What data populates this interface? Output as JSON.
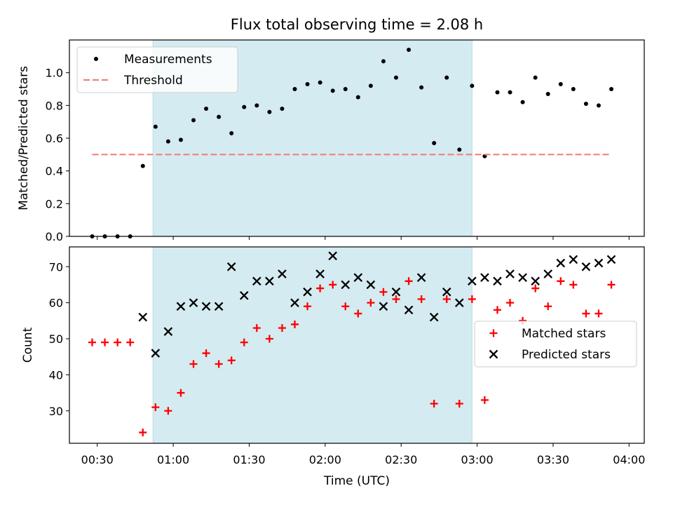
{
  "chart_data": [
    {
      "type": "scatter",
      "title": "Flux total observing time = 2.08 h",
      "xlabel": "",
      "ylabel": "Matched/Predicted stars",
      "xlim": [
        "00:19",
        "04:06"
      ],
      "ylim": [
        0,
        1.2
      ],
      "yticks": [
        0.0,
        0.2,
        0.4,
        0.6,
        0.8,
        1.0
      ],
      "ytick_labels": [
        "0.0",
        "0.2",
        "0.4",
        "0.6",
        "0.8",
        "1.0"
      ],
      "highlight_span": [
        "00:52",
        "02:58"
      ],
      "highlight_color": "#d4ebf1",
      "legend": {
        "placement": "upper left",
        "entries": [
          "Measurements",
          "Threshold"
        ]
      },
      "series": [
        {
          "name": "Measurements",
          "marker": "dot",
          "color": "#000000",
          "points": [
            [
              "00:28",
              0.0
            ],
            [
              "00:33",
              0.0
            ],
            [
              "00:38",
              0.0
            ],
            [
              "00:43",
              0.0
            ],
            [
              "00:48",
              0.43
            ],
            [
              "00:53",
              0.67
            ],
            [
              "00:58",
              0.58
            ],
            [
              "01:03",
              0.59
            ],
            [
              "01:08",
              0.71
            ],
            [
              "01:13",
              0.78
            ],
            [
              "01:18",
              0.73
            ],
            [
              "01:23",
              0.63
            ],
            [
              "01:28",
              0.79
            ],
            [
              "01:33",
              0.8
            ],
            [
              "01:38",
              0.76
            ],
            [
              "01:43",
              0.78
            ],
            [
              "01:48",
              0.9
            ],
            [
              "01:53",
              0.93
            ],
            [
              "01:58",
              0.94
            ],
            [
              "02:03",
              0.89
            ],
            [
              "02:08",
              0.9
            ],
            [
              "02:13",
              0.85
            ],
            [
              "02:18",
              0.92
            ],
            [
              "02:23",
              1.07
            ],
            [
              "02:28",
              0.97
            ],
            [
              "02:33",
              1.14
            ],
            [
              "02:38",
              0.91
            ],
            [
              "02:43",
              0.57
            ],
            [
              "02:48",
              0.97
            ],
            [
              "02:53",
              0.53
            ],
            [
              "02:58",
              0.92
            ],
            [
              "03:03",
              0.49
            ],
            [
              "03:08",
              0.88
            ],
            [
              "03:13",
              0.88
            ],
            [
              "03:18",
              0.82
            ],
            [
              "03:23",
              0.97
            ],
            [
              "03:28",
              0.87
            ],
            [
              "03:33",
              0.93
            ],
            [
              "03:38",
              0.9
            ],
            [
              "03:43",
              0.81
            ],
            [
              "03:48",
              0.8
            ],
            [
              "03:53",
              0.9
            ]
          ]
        },
        {
          "name": "Threshold",
          "style": "dashed",
          "color": "#f08080",
          "points": [
            [
              "00:28",
              0.5
            ],
            [
              "03:53",
              0.5
            ]
          ]
        }
      ]
    },
    {
      "type": "scatter",
      "title": "",
      "xlabel": "Time (UTC)",
      "ylabel": "Count",
      "xlim": [
        "00:19",
        "04:06"
      ],
      "ylim": [
        21,
        75.5
      ],
      "yticks": [
        30,
        40,
        50,
        60,
        70
      ],
      "ytick_labels": [
        "30",
        "40",
        "50",
        "60",
        "70"
      ],
      "xticks": [
        "00:30",
        "01:00",
        "01:30",
        "02:00",
        "02:30",
        "03:00",
        "03:30",
        "04:00"
      ],
      "xtick_labels": [
        "00:30",
        "01:00",
        "01:30",
        "02:00",
        "02:30",
        "03:00",
        "03:30",
        "04:00"
      ],
      "highlight_span": [
        "00:52",
        "02:58"
      ],
      "highlight_color": "#d4ebf1",
      "legend": {
        "placement": "center right",
        "entries": [
          "Matched stars",
          "Predicted stars"
        ]
      },
      "series": [
        {
          "name": "Matched stars",
          "marker": "plus",
          "color": "#ff0000",
          "points": [
            [
              "00:28",
              49
            ],
            [
              "00:33",
              49
            ],
            [
              "00:38",
              49
            ],
            [
              "00:43",
              49
            ],
            [
              "00:48",
              24
            ],
            [
              "00:53",
              31
            ],
            [
              "00:58",
              30
            ],
            [
              "01:03",
              35
            ],
            [
              "01:08",
              43
            ],
            [
              "01:13",
              46
            ],
            [
              "01:18",
              43
            ],
            [
              "01:23",
              44
            ],
            [
              "01:28",
              49
            ],
            [
              "01:33",
              53
            ],
            [
              "01:38",
              50
            ],
            [
              "01:43",
              53
            ],
            [
              "01:48",
              54
            ],
            [
              "01:53",
              59
            ],
            [
              "01:58",
              64
            ],
            [
              "02:03",
              65
            ],
            [
              "02:08",
              59
            ],
            [
              "02:13",
              57
            ],
            [
              "02:18",
              60
            ],
            [
              "02:23",
              63
            ],
            [
              "02:28",
              61
            ],
            [
              "02:33",
              66
            ],
            [
              "02:38",
              61
            ],
            [
              "02:43",
              32
            ],
            [
              "02:48",
              61
            ],
            [
              "02:53",
              32
            ],
            [
              "02:58",
              61
            ],
            [
              "03:03",
              33
            ],
            [
              "03:08",
              58
            ],
            [
              "03:13",
              60
            ],
            [
              "03:18",
              55
            ],
            [
              "03:23",
              64
            ],
            [
              "03:28",
              59
            ],
            [
              "03:33",
              66
            ],
            [
              "03:38",
              65
            ],
            [
              "03:43",
              57
            ],
            [
              "03:48",
              57
            ],
            [
              "03:53",
              65
            ]
          ]
        },
        {
          "name": "Predicted stars",
          "marker": "x",
          "color": "#000000",
          "points": [
            [
              "00:48",
              56
            ],
            [
              "00:53",
              46
            ],
            [
              "00:58",
              52
            ],
            [
              "01:03",
              59
            ],
            [
              "01:08",
              60
            ],
            [
              "01:13",
              59
            ],
            [
              "01:18",
              59
            ],
            [
              "01:23",
              70
            ],
            [
              "01:28",
              62
            ],
            [
              "01:33",
              66
            ],
            [
              "01:38",
              66
            ],
            [
              "01:43",
              68
            ],
            [
              "01:48",
              60
            ],
            [
              "01:53",
              63
            ],
            [
              "01:58",
              68
            ],
            [
              "02:03",
              73
            ],
            [
              "02:08",
              65
            ],
            [
              "02:13",
              67
            ],
            [
              "02:18",
              65
            ],
            [
              "02:23",
              59
            ],
            [
              "02:28",
              63
            ],
            [
              "02:33",
              58
            ],
            [
              "02:38",
              67
            ],
            [
              "02:43",
              56
            ],
            [
              "02:48",
              63
            ],
            [
              "02:53",
              60
            ],
            [
              "02:58",
              66
            ],
            [
              "03:03",
              67
            ],
            [
              "03:08",
              66
            ],
            [
              "03:13",
              68
            ],
            [
              "03:18",
              67
            ],
            [
              "03:23",
              66
            ],
            [
              "03:28",
              68
            ],
            [
              "03:33",
              71
            ],
            [
              "03:38",
              72
            ],
            [
              "03:43",
              70
            ],
            [
              "03:48",
              71
            ],
            [
              "03:53",
              72
            ]
          ]
        }
      ]
    }
  ]
}
